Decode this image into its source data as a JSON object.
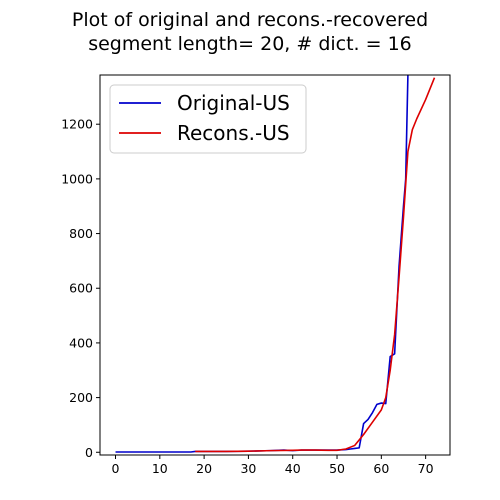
{
  "chart_data": {
    "type": "line",
    "title_lines": [
      "Plot of original and recons.-recovered",
      "segment length= 20, # dict. = 16"
    ],
    "xlabel": "",
    "ylabel": "",
    "xlim": [
      -3.5,
      75.5
    ],
    "ylim": [
      -10,
      1380
    ],
    "x_ticks": [
      0,
      10,
      20,
      30,
      40,
      50,
      60,
      70
    ],
    "y_ticks": [
      0,
      200,
      400,
      600,
      800,
      1000,
      1200
    ],
    "grid": false,
    "legend_position": "top-left",
    "series": [
      {
        "name": "Original-US",
        "color": "#0000cc",
        "points": [
          [
            0,
            1
          ],
          [
            5,
            1
          ],
          [
            10,
            1
          ],
          [
            15,
            1
          ],
          [
            17,
            1
          ],
          [
            18,
            3
          ],
          [
            20,
            3
          ],
          [
            25,
            3
          ],
          [
            30,
            4
          ],
          [
            35,
            6
          ],
          [
            38,
            8
          ],
          [
            40,
            6
          ],
          [
            42,
            8
          ],
          [
            45,
            8
          ],
          [
            48,
            8
          ],
          [
            50,
            8
          ],
          [
            52,
            10
          ],
          [
            53,
            12
          ],
          [
            54,
            14
          ],
          [
            55,
            16
          ],
          [
            56,
            105
          ],
          [
            57,
            120
          ],
          [
            58,
            145
          ],
          [
            59,
            175
          ],
          [
            60,
            180
          ],
          [
            61,
            178
          ],
          [
            62,
            350
          ],
          [
            63,
            360
          ],
          [
            64,
            680
          ],
          [
            65,
            900
          ],
          [
            65.5,
            1000
          ],
          [
            66,
            1380
          ]
        ]
      },
      {
        "name": "Recons.-US",
        "color": "#dd0000",
        "points": [
          [
            18,
            3
          ],
          [
            20,
            3
          ],
          [
            25,
            3
          ],
          [
            30,
            4
          ],
          [
            35,
            6
          ],
          [
            40,
            7
          ],
          [
            42,
            8
          ],
          [
            45,
            8
          ],
          [
            48,
            7
          ],
          [
            50,
            7
          ],
          [
            52,
            12
          ],
          [
            54,
            25
          ],
          [
            56,
            65
          ],
          [
            58,
            110
          ],
          [
            60,
            155
          ],
          [
            61,
            200
          ],
          [
            62,
            300
          ],
          [
            63,
            430
          ],
          [
            64,
            640
          ],
          [
            65,
            860
          ],
          [
            66,
            1100
          ],
          [
            67,
            1180
          ],
          [
            68,
            1220
          ],
          [
            70,
            1290
          ],
          [
            72,
            1370
          ]
        ]
      }
    ]
  }
}
